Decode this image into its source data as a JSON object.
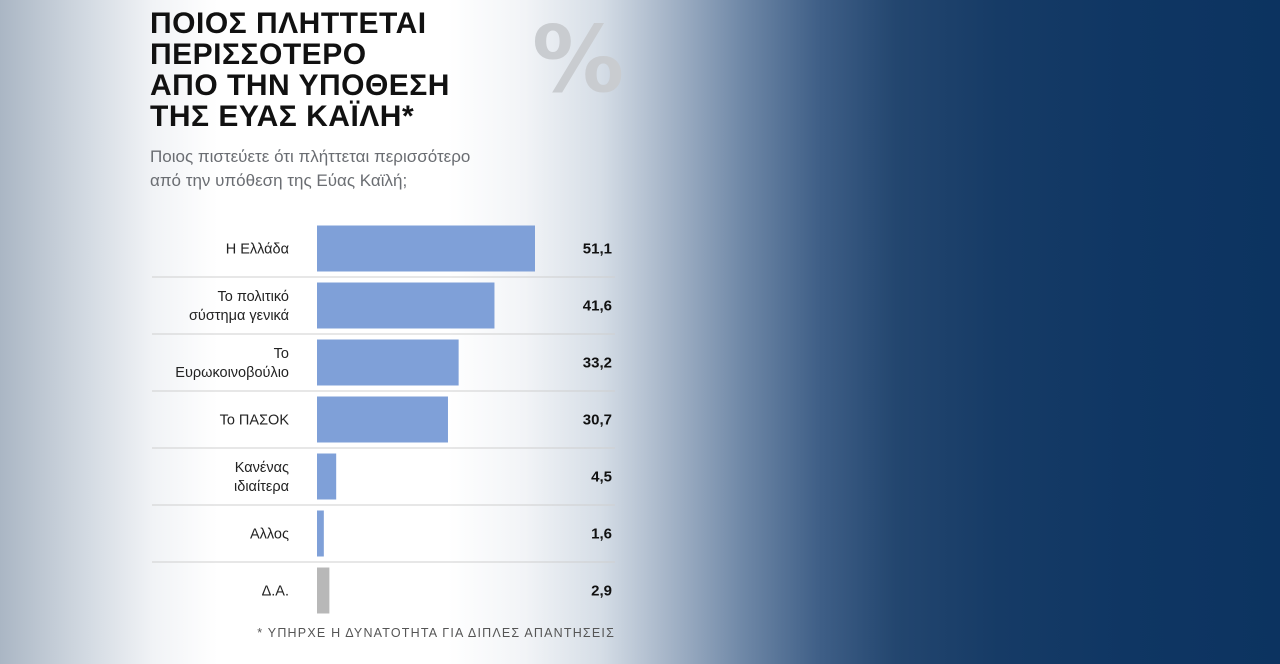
{
  "title_lines": [
    "ΠΟΙΟΣ ΠΛΗΤΤΕΤΑΙ",
    "ΠΕΡΙΣΣΟΤΕΡΟ",
    "ΑΠΟ ΤΗΝ ΥΠΟΘΕΣΗ",
    "ΤΗΣ ΕΥΑΣ ΚΑΪΛΗ*"
  ],
  "percent_symbol": "%",
  "subtitle_lines": [
    "Ποιος πιστεύετε ότι πλήττεται περισσότερο",
    "από την υπόθεση της Εύας Καϊλή;"
  ],
  "footnote": "* ΥΠΗΡΧΕ Η ΔΥΝΑΤΟΤΗΤΑ ΓΙΑ ΔΙΠΛΕΣ ΑΠΑΝΤΗΣΕΙΣ",
  "colors": {
    "bar": "#7fa0d8",
    "bar_na": "#b8b8b8",
    "text": "#111111",
    "divider": "#cfcfcf"
  },
  "chart_data": {
    "type": "bar",
    "orientation": "horizontal",
    "unit": "%",
    "grid": false,
    "categories": [
      [
        "Η Ελλάδα"
      ],
      [
        "Το πολιτικό",
        "σύστημα γενικά"
      ],
      [
        "Το",
        "Ευρωκοινοβούλιο"
      ],
      [
        "Το ΠΑΣΟΚ"
      ],
      [
        "Κανένας",
        "ιδιαίτερα"
      ],
      [
        "Αλλος"
      ],
      [
        "Δ.Α."
      ]
    ],
    "values": [
      51.1,
      41.6,
      33.2,
      30.7,
      4.5,
      1.6,
      2.9
    ],
    "value_labels": [
      "51,1",
      "41,6",
      "33,2",
      "30,7",
      "4,5",
      "1,6",
      "2,9"
    ],
    "highlight_gray": [
      false,
      false,
      false,
      false,
      false,
      false,
      true
    ],
    "xlim": [
      0,
      70
    ]
  }
}
